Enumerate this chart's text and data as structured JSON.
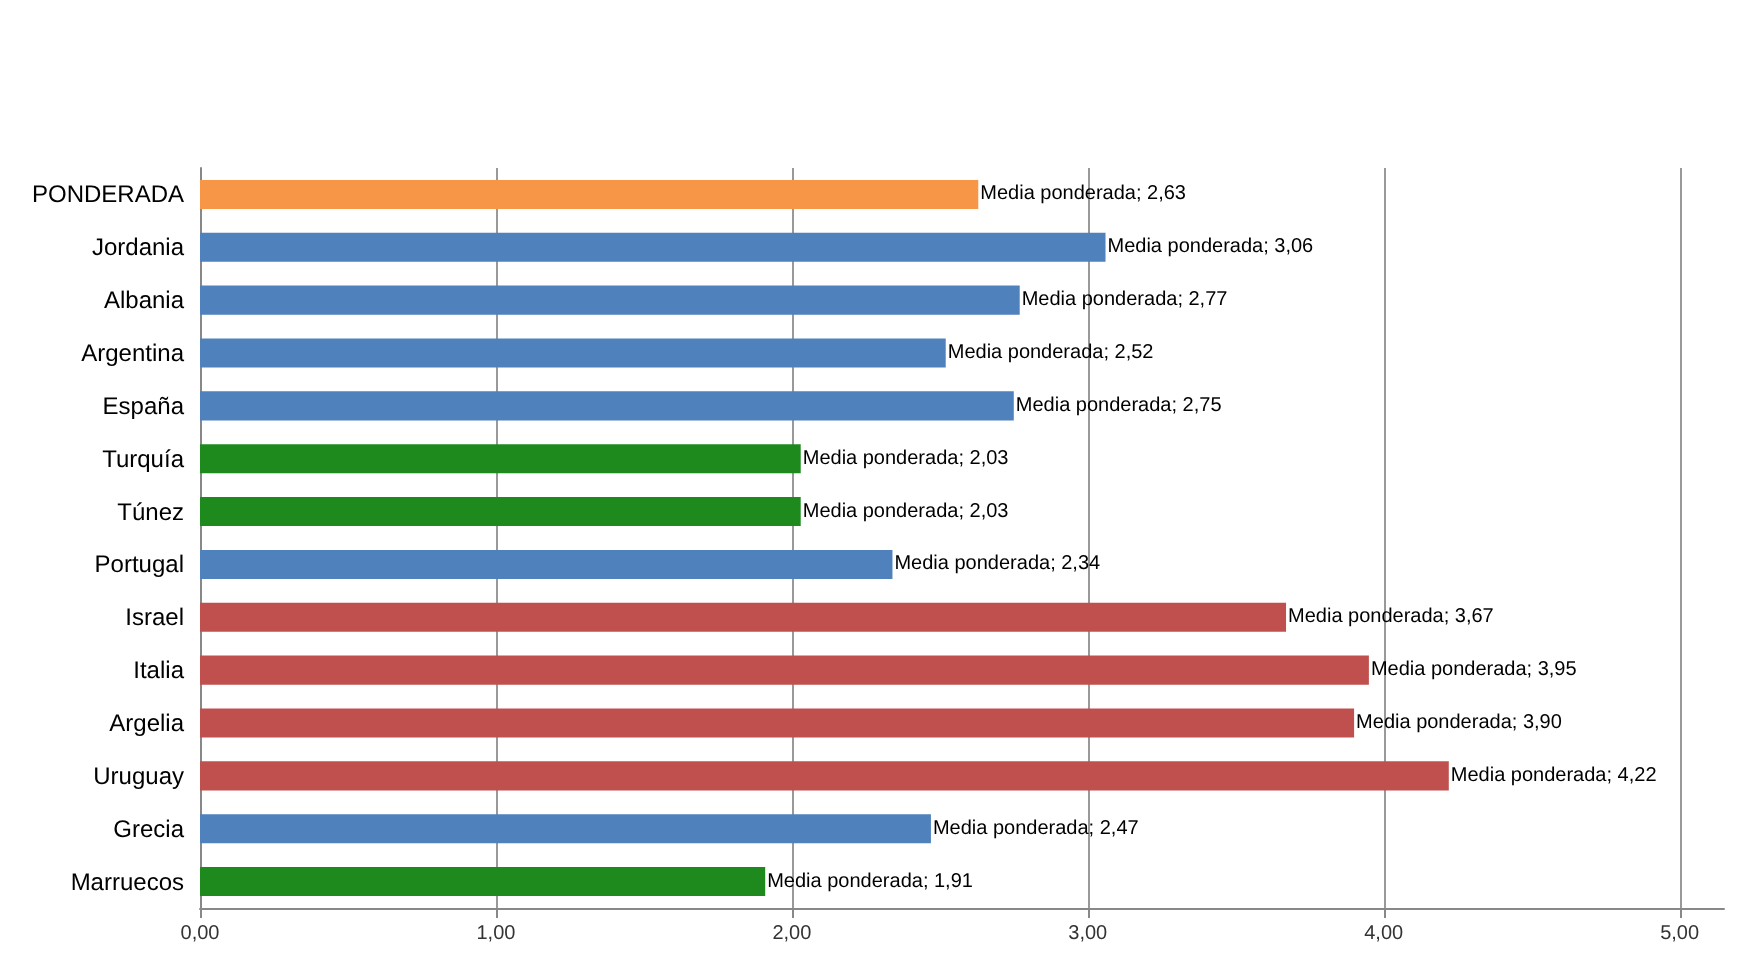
{
  "chart_data": {
    "type": "bar",
    "orientation": "horizontal",
    "categories": [
      "PONDERADA",
      "Jordania",
      "Albania",
      "Argentina",
      "España",
      "Turquía",
      "Túnez",
      "Portugal",
      "Israel",
      "Italia",
      "Argelia",
      "Uruguay",
      "Grecia",
      "Marruecos"
    ],
    "values": [
      2.63,
      3.06,
      2.77,
      2.52,
      2.75,
      2.03,
      2.03,
      2.34,
      3.67,
      3.95,
      3.9,
      4.22,
      2.47,
      1.91
    ],
    "colors": [
      "#f79646",
      "#4f81bd",
      "#4f81bd",
      "#4f81bd",
      "#4f81bd",
      "#1e8a1e",
      "#1e8a1e",
      "#4f81bd",
      "#c0504d",
      "#c0504d",
      "#c0504d",
      "#c0504d",
      "#4f81bd",
      "#1e8a1e"
    ],
    "value_labels": [
      "Media ponderada; 2,63",
      "Media ponderada; 3,06",
      "Media ponderada; 2,77",
      "Media ponderada; 2,52",
      "Media ponderada; 2,75",
      "Media ponderada; 2,03",
      "Media ponderada; 2,03",
      "Media ponderada; 2,34",
      "Media ponderada; 3,67",
      "Media ponderada; 3,95",
      "Media ponderada; 3,90",
      "Media ponderada; 4,22",
      "Media ponderada; 2,47",
      "Media ponderada; 1,91"
    ],
    "xlim": [
      0,
      5.15
    ],
    "xticks": [
      {
        "value": 0,
        "label": "0,00"
      },
      {
        "value": 1,
        "label": "1,00"
      },
      {
        "value": 2,
        "label": "2,00"
      },
      {
        "value": 3,
        "label": "3,00"
      },
      {
        "value": 4,
        "label": "4,00"
      },
      {
        "value": 5,
        "label": "5,00"
      }
    ],
    "grid": "x"
  }
}
